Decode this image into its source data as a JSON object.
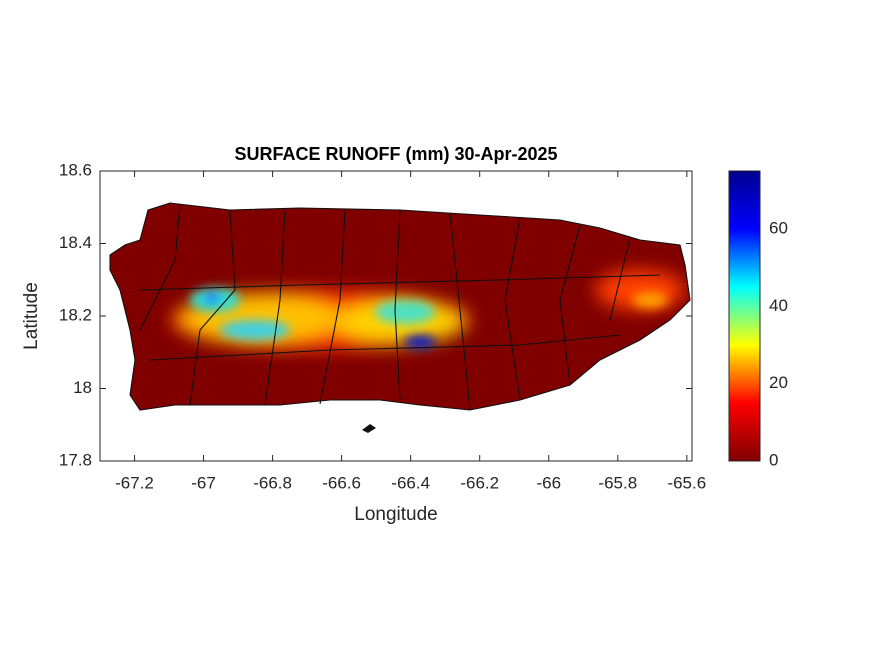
{
  "chart_data": {
    "type": "map",
    "title": "SURFACE RUNOFF (mm) 30-Apr-2025",
    "x_label": "Longitude",
    "y_label": "Latitude",
    "xlim": [
      -67.3,
      -65.585
    ],
    "xticks": [
      -67.2,
      -67,
      -66.8,
      -66.6,
      -66.4,
      -66.2,
      -66,
      -65.8,
      -65.6
    ],
    "ylim": [
      17.8,
      18.6
    ],
    "yticks": [
      17.8,
      18,
      18.2,
      18.4,
      18.6
    ],
    "colormap": "jet",
    "colorbar": {
      "lim": [
        0,
        75
      ],
      "ticks": [
        0,
        20,
        40,
        60
      ]
    }
  }
}
